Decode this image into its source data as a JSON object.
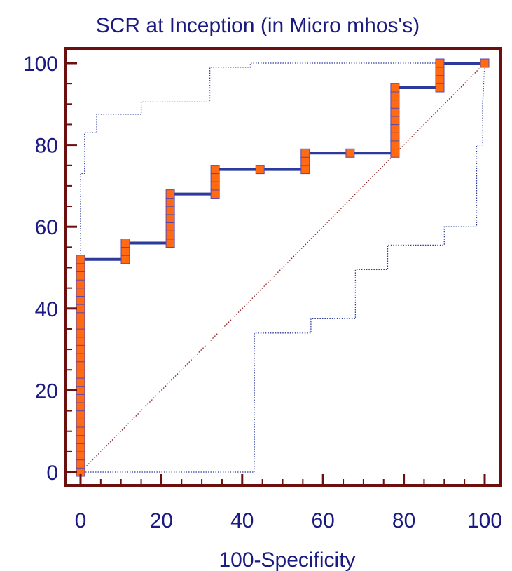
{
  "chart_data": {
    "type": "line",
    "title": "SCR at Inception (in Micro mhos's)",
    "xlabel": "100-Specificity",
    "ylabel": "",
    "xlim": [
      0,
      100
    ],
    "ylim": [
      0,
      100
    ],
    "x_ticks": [
      "0",
      "20",
      "40",
      "60",
      "80",
      "100"
    ],
    "y_ticks": [
      "0",
      "20",
      "40",
      "60",
      "80",
      "100"
    ],
    "grid": false,
    "colors": {
      "frame": "#6b0f0f",
      "roc_line": "#2b3a9b",
      "marker_fill": "#ff6a13",
      "marker_edge": "#5a4ab0",
      "ci_line": "#2b3a9b",
      "diagonal": "#8b1a1a",
      "text": "#1a1a80"
    },
    "series": [
      {
        "style": "roc",
        "points": [
          [
            0,
            0
          ],
          [
            0,
            2
          ],
          [
            0,
            4
          ],
          [
            0,
            6
          ],
          [
            0,
            8
          ],
          [
            0,
            10
          ],
          [
            0,
            12
          ],
          [
            0,
            14
          ],
          [
            0,
            16
          ],
          [
            0,
            18
          ],
          [
            0,
            20
          ],
          [
            0,
            22
          ],
          [
            0,
            24
          ],
          [
            0,
            26
          ],
          [
            0,
            28
          ],
          [
            0,
            30
          ],
          [
            0,
            32
          ],
          [
            0,
            34
          ],
          [
            0,
            36
          ],
          [
            0,
            38
          ],
          [
            0,
            40
          ],
          [
            0,
            42
          ],
          [
            0,
            44
          ],
          [
            0,
            46
          ],
          [
            0,
            48
          ],
          [
            0,
            50
          ],
          [
            0,
            52
          ],
          [
            11.1,
            52
          ],
          [
            11.1,
            54
          ],
          [
            11.1,
            56
          ],
          [
            22.2,
            56
          ],
          [
            22.2,
            58
          ],
          [
            22.2,
            60
          ],
          [
            22.2,
            62
          ],
          [
            22.2,
            64
          ],
          [
            22.2,
            66
          ],
          [
            22.2,
            68
          ],
          [
            33.3,
            68
          ],
          [
            33.3,
            70
          ],
          [
            33.3,
            72
          ],
          [
            33.3,
            74
          ],
          [
            44.4,
            74
          ],
          [
            55.6,
            74
          ],
          [
            55.6,
            76
          ],
          [
            55.6,
            78
          ],
          [
            66.7,
            78
          ],
          [
            77.8,
            78
          ],
          [
            77.8,
            80
          ],
          [
            77.8,
            82
          ],
          [
            77.8,
            84
          ],
          [
            77.8,
            86
          ],
          [
            77.8,
            88
          ],
          [
            77.8,
            90
          ],
          [
            77.8,
            92
          ],
          [
            77.8,
            94
          ],
          [
            88.9,
            94
          ],
          [
            88.9,
            96
          ],
          [
            88.9,
            98
          ],
          [
            88.9,
            100
          ],
          [
            100,
            100
          ]
        ]
      },
      {
        "style": "ci-upper",
        "points": [
          [
            0,
            0
          ],
          [
            0,
            73
          ],
          [
            1,
            73
          ],
          [
            1,
            83
          ],
          [
            4,
            83
          ],
          [
            4,
            87.5
          ],
          [
            15,
            87.5
          ],
          [
            15,
            90.5
          ],
          [
            32,
            90.5
          ],
          [
            32,
            99
          ],
          [
            42,
            99
          ],
          [
            42,
            100
          ],
          [
            100,
            100
          ]
        ]
      },
      {
        "style": "ci-lower",
        "points": [
          [
            0,
            0
          ],
          [
            43,
            0
          ],
          [
            43,
            34
          ],
          [
            57,
            34
          ],
          [
            57,
            37.5
          ],
          [
            68,
            37.5
          ],
          [
            68,
            49.5
          ],
          [
            76,
            49.5
          ],
          [
            76,
            55.5
          ],
          [
            90,
            55.5
          ],
          [
            90,
            60
          ],
          [
            98,
            60
          ],
          [
            98,
            80
          ],
          [
            99.5,
            80
          ],
          [
            99.5,
            90
          ],
          [
            100,
            100
          ]
        ]
      },
      {
        "style": "diagonal",
        "points": [
          [
            0,
            0
          ],
          [
            100,
            100
          ]
        ]
      }
    ]
  }
}
